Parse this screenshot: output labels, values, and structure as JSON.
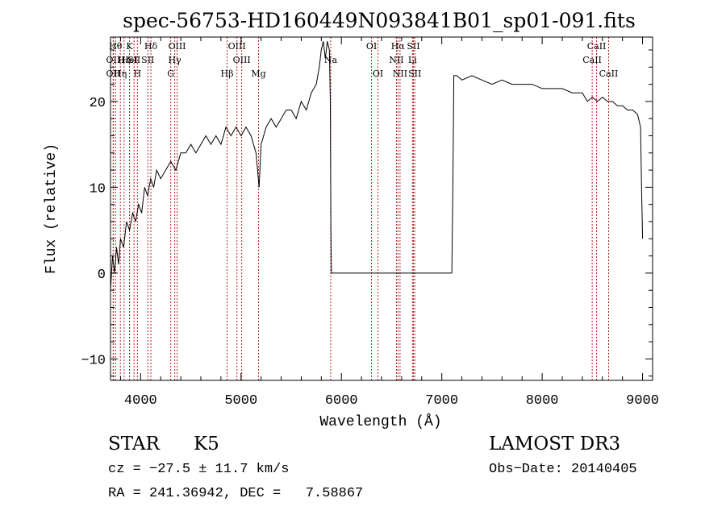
{
  "chart_data": {
    "type": "line",
    "title": "spec-56753-HD160449N093841B01_sp01-091.fits",
    "xlabel": "Wavelength (Å)",
    "ylabel": "Flux (relative)",
    "xlim": [
      3700,
      9100
    ],
    "ylim": [
      -12.5,
      27.5
    ],
    "xticks": [
      4000,
      5000,
      6000,
      7000,
      8000,
      9000
    ],
    "yticks": [
      -10,
      0,
      10,
      20
    ],
    "grid": false,
    "series": [
      {
        "x": [
          3700,
          3720,
          3740,
          3760,
          3780,
          3800,
          3830,
          3860,
          3890,
          3920,
          3950,
          3980,
          4010,
          4040,
          4070,
          4100,
          4130,
          4160,
          4200,
          4250,
          4300,
          4350,
          4400,
          4450,
          4500,
          4550,
          4600,
          4650,
          4700,
          4750,
          4800,
          4850,
          4900,
          4950,
          5000,
          5050,
          5100,
          5150,
          5180,
          5200,
          5250,
          5300,
          5350,
          5400,
          5450,
          5500,
          5550,
          5600,
          5650,
          5700,
          5750,
          5780,
          5800,
          5820,
          5840,
          5860,
          5880,
          5890,
          5895,
          5900,
          6000,
          6500,
          7000,
          7100,
          7110,
          7120,
          7150,
          7200,
          7300,
          7400,
          7500,
          7600,
          7700,
          7800,
          7900,
          8000,
          8100,
          8200,
          8300,
          8400,
          8450,
          8500,
          8550,
          8600,
          8650,
          8700,
          8750,
          8800,
          8850,
          8900,
          8950,
          8980,
          8990,
          9000
        ],
        "y": [
          -2,
          2,
          0,
          3,
          1,
          4,
          3,
          6,
          5,
          7,
          6,
          8,
          7,
          10,
          9,
          11,
          10,
          12,
          11,
          12,
          13,
          12,
          14,
          14,
          15,
          14,
          15,
          16,
          15,
          16,
          15,
          17,
          16,
          17,
          16,
          17,
          16,
          14,
          10,
          15,
          17,
          18,
          17,
          18,
          19,
          19,
          18,
          20,
          19,
          21,
          22,
          24,
          26,
          27,
          25,
          27,
          26,
          20,
          5,
          0,
          0,
          0,
          0,
          0,
          10,
          23,
          23,
          22.5,
          23,
          22.5,
          22,
          22.5,
          22,
          22,
          22,
          21.5,
          21.5,
          21.5,
          21,
          21,
          20,
          20.5,
          20,
          20.5,
          20,
          20,
          19.5,
          19.5,
          19,
          19,
          18.5,
          17,
          10,
          4
        ]
      }
    ],
    "lines": [
      {
        "x": 3750,
        "label": "Hθ",
        "row": 1
      },
      {
        "x": 3727,
        "label": "OII",
        "row": 2
      },
      {
        "x": 3727,
        "label": "OII",
        "row": 3
      },
      {
        "x": 3798,
        "label": "Hη",
        "row": 3
      },
      {
        "x": 3835,
        "label": "Hε",
        "row": 2
      },
      {
        "x": 3889,
        "label": "K",
        "row": 1
      },
      {
        "x": 3889,
        "label": "HeI",
        "row": 2
      },
      {
        "x": 3934,
        "label": "SII",
        "row": 2
      },
      {
        "x": 3968,
        "label": "H",
        "row": 3
      },
      {
        "x": 4102,
        "label": "Hδ",
        "row": 1
      },
      {
        "x": 4072,
        "label": "SII",
        "row": 2
      },
      {
        "x": 4300,
        "label": "G",
        "row": 3
      },
      {
        "x": 4340,
        "label": "Hγ",
        "row": 2
      },
      {
        "x": 4363,
        "label": "OIII",
        "row": 1
      },
      {
        "x": 4861,
        "label": "Hβ",
        "row": 3
      },
      {
        "x": 4959,
        "label": "OIII",
        "row": 1
      },
      {
        "x": 5007,
        "label": "OIII",
        "row": 2
      },
      {
        "x": 5175,
        "label": "Mg",
        "row": 3
      },
      {
        "x": 5893,
        "label": "Na",
        "row": 2
      },
      {
        "x": 6300,
        "label": "OI",
        "row": 1
      },
      {
        "x": 6364,
        "label": "OI",
        "row": 3
      },
      {
        "x": 6548,
        "label": "NII",
        "row": 2
      },
      {
        "x": 6563,
        "label": "Hα",
        "row": 1
      },
      {
        "x": 6584,
        "label": "NII",
        "row": 3
      },
      {
        "x": 6708,
        "label": "Li",
        "row": 2
      },
      {
        "x": 6717,
        "label": "SII",
        "row": 1
      },
      {
        "x": 6731,
        "label": "SII",
        "row": 3
      },
      {
        "x": 8498,
        "label": "CaII",
        "row": 2
      },
      {
        "x": 8542,
        "label": "CaII",
        "row": 1
      },
      {
        "x": 8662,
        "label": "CaII",
        "row": 3
      }
    ]
  },
  "info": {
    "class_label": "STAR",
    "subclass": "K5",
    "survey": "LAMOST DR3",
    "cz": "cz = −27.5 ± 11.7 km/s",
    "obs_date": "Obs−Date: 20140405",
    "radec": "RA = 241.36942, DEC =   7.58867"
  }
}
